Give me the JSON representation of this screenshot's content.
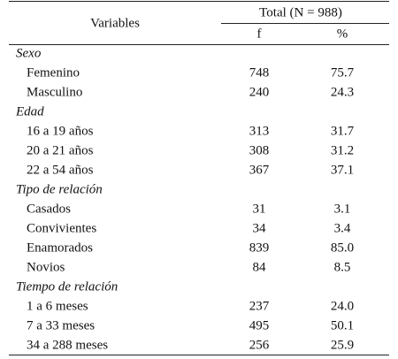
{
  "table": {
    "header": {
      "variables": "Variables",
      "total": "Total (N = 988)",
      "f": "f",
      "pct": "%"
    },
    "groups": [
      {
        "label": "Sexo",
        "rows": [
          [
            "Femenino",
            "748",
            "75.7"
          ],
          [
            "Masculino",
            "240",
            "24.3"
          ]
        ]
      },
      {
        "label": "Edad",
        "rows": [
          [
            "16 a 19 años",
            "313",
            "31.7"
          ],
          [
            "20 a 21 años",
            "308",
            "31.2"
          ],
          [
            "22 a 54 años",
            "367",
            "37.1"
          ]
        ]
      },
      {
        "label": "Tipo de relación",
        "rows": [
          [
            "Casados",
            "31",
            "3.1"
          ],
          [
            "Convivientes",
            "34",
            "3.4"
          ],
          [
            "Enamorados",
            "839",
            "85.0"
          ],
          [
            "Novios",
            "84",
            "8.5"
          ]
        ]
      },
      {
        "label": "Tiempo de relación",
        "rows": [
          [
            "1 a 6 meses",
            "237",
            "24.0"
          ],
          [
            "7 a 33 meses",
            "495",
            "50.1"
          ],
          [
            "34 a 288 meses",
            "256",
            "25.9"
          ]
        ]
      }
    ]
  }
}
